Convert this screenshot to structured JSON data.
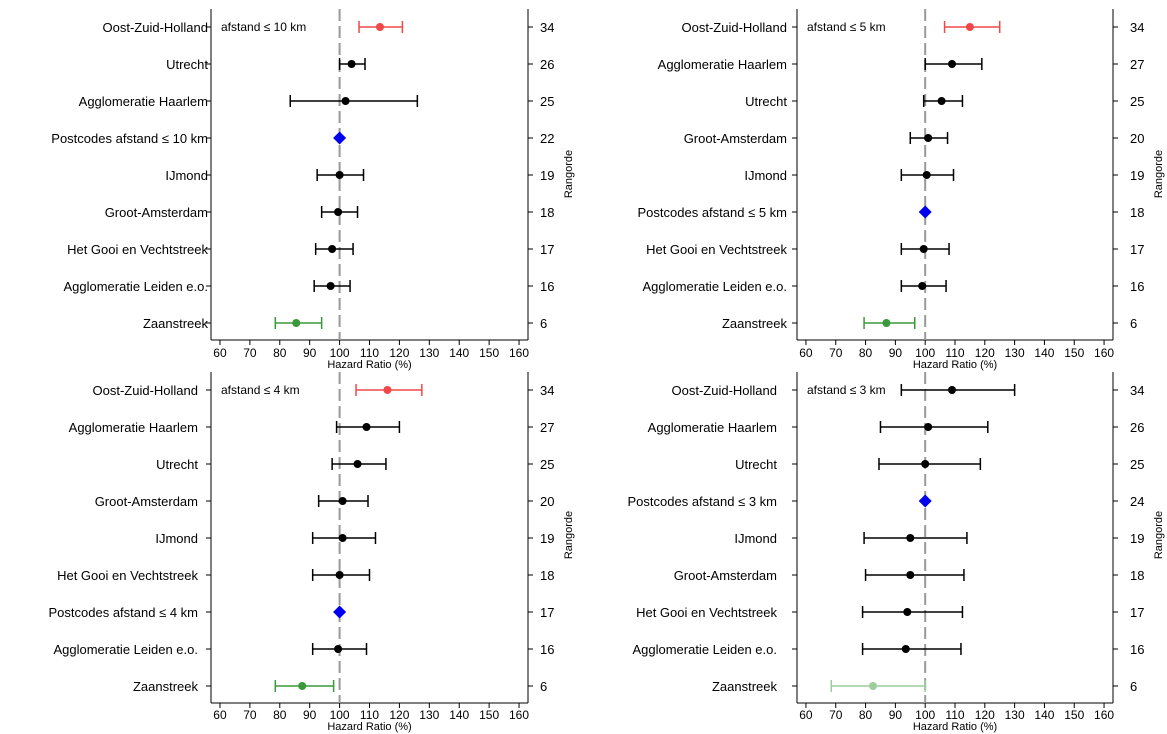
{
  "chart_data": [
    {
      "type": "forest",
      "annotation": "afstand ≤ 10 km",
      "xlabel": "Hazard Ratio (%)",
      "right_label": "Rangorde",
      "xlim": [
        57,
        163
      ],
      "xticks": [
        60,
        70,
        80,
        90,
        100,
        110,
        120,
        130,
        140,
        150,
        160
      ],
      "reference": 100,
      "rows": [
        {
          "label": "Oost-Zuid-Holland",
          "rank": "34",
          "est": 113.5,
          "lo": 106.5,
          "hi": 121,
          "color": "#f04848"
        },
        {
          "label": "Utrecht",
          "rank": "26",
          "est": 104,
          "lo": 100,
          "hi": 108.5,
          "color": "#000000"
        },
        {
          "label": "Agglomeratie Haarlem",
          "rank": "25",
          "est": 102,
          "lo": 83.5,
          "hi": 126,
          "color": "#000000"
        },
        {
          "label": "Postcodes afstand ≤ 10 km",
          "rank": "22",
          "est": 100,
          "lo": null,
          "hi": null,
          "color": "#0000ee",
          "marker": "diamond"
        },
        {
          "label": "IJmond",
          "rank": "19",
          "est": 100,
          "lo": 92.5,
          "hi": 108,
          "color": "#000000"
        },
        {
          "label": "Groot-Amsterdam",
          "rank": "18",
          "est": 99.5,
          "lo": 94,
          "hi": 106,
          "color": "#000000"
        },
        {
          "label": "Het Gooi en Vechtstreek",
          "rank": "17",
          "est": 97.5,
          "lo": 92,
          "hi": 104.5,
          "color": "#000000"
        },
        {
          "label": "Agglomeratie Leiden e.o.",
          "rank": "16",
          "est": 97,
          "lo": 91.5,
          "hi": 103.5,
          "color": "#000000"
        },
        {
          "label": "Zaanstreek",
          "rank": "6",
          "est": 85.5,
          "lo": 78.5,
          "hi": 94,
          "color": "#3a9a3a"
        }
      ]
    },
    {
      "type": "forest",
      "annotation": "afstand ≤ 5 km",
      "xlabel": "Hazard Ratio (%)",
      "right_label": "Rangorde",
      "xlim": [
        57,
        163
      ],
      "xticks": [
        60,
        70,
        80,
        90,
        100,
        110,
        120,
        130,
        140,
        150,
        160
      ],
      "reference": 100,
      "rows": [
        {
          "label": "Oost-Zuid-Holland",
          "rank": "34",
          "est": 115,
          "lo": 106.5,
          "hi": 125,
          "color": "#f04848"
        },
        {
          "label": "Agglomeratie Haarlem",
          "rank": "27",
          "est": 109,
          "lo": 100,
          "hi": 119,
          "color": "#000000"
        },
        {
          "label": "Utrecht",
          "rank": "25",
          "est": 105.5,
          "lo": 99.5,
          "hi": 112.5,
          "color": "#000000"
        },
        {
          "label": "Groot-Amsterdam",
          "rank": "20",
          "est": 101,
          "lo": 95,
          "hi": 107.5,
          "color": "#000000"
        },
        {
          "label": "IJmond",
          "rank": "19",
          "est": 100.5,
          "lo": 92,
          "hi": 109.5,
          "color": "#000000"
        },
        {
          "label": "Postcodes afstand ≤ 5 km",
          "rank": "18",
          "est": 100,
          "lo": null,
          "hi": null,
          "color": "#0000ee",
          "marker": "diamond"
        },
        {
          "label": "Het Gooi en Vechtstreek",
          "rank": "17",
          "est": 99.5,
          "lo": 92,
          "hi": 108,
          "color": "#000000"
        },
        {
          "label": "Agglomeratie Leiden e.o.",
          "rank": "16",
          "est": 99,
          "lo": 92,
          "hi": 107,
          "color": "#000000"
        },
        {
          "label": "Zaanstreek",
          "rank": "6",
          "est": 87,
          "lo": 79.5,
          "hi": 96.5,
          "color": "#3a9a3a"
        }
      ]
    },
    {
      "type": "forest",
      "annotation": "afstand ≤ 4 km",
      "xlabel": "Hazard Ratio (%)",
      "right_label": "Rangorde",
      "xlim": [
        57,
        163
      ],
      "xticks": [
        60,
        70,
        80,
        90,
        100,
        110,
        120,
        130,
        140,
        150,
        160
      ],
      "reference": 100,
      "rows": [
        {
          "label": "Oost-Zuid-Holland",
          "rank": "34",
          "est": 116,
          "lo": 105.5,
          "hi": 127.5,
          "color": "#f04848"
        },
        {
          "label": "Agglomeratie Haarlem",
          "rank": "27",
          "est": 109,
          "lo": 99,
          "hi": 120,
          "color": "#000000"
        },
        {
          "label": "Utrecht",
          "rank": "25",
          "est": 106,
          "lo": 97.5,
          "hi": 115.5,
          "color": "#000000"
        },
        {
          "label": "Groot-Amsterdam",
          "rank": "20",
          "est": 101,
          "lo": 93,
          "hi": 109.5,
          "color": "#000000"
        },
        {
          "label": "IJmond",
          "rank": "19",
          "est": 101,
          "lo": 91,
          "hi": 112,
          "color": "#000000"
        },
        {
          "label": "Het Gooi en Vechtstreek",
          "rank": "18",
          "est": 100,
          "lo": 91,
          "hi": 110,
          "color": "#000000"
        },
        {
          "label": "Postcodes afstand ≤ 4 km",
          "rank": "17",
          "est": 100,
          "lo": null,
          "hi": null,
          "color": "#0000ee",
          "marker": "diamond"
        },
        {
          "label": "Agglomeratie Leiden e.o.",
          "rank": "16",
          "est": 99.5,
          "lo": 91,
          "hi": 109,
          "color": "#000000"
        },
        {
          "label": "Zaanstreek",
          "rank": "6",
          "est": 87.5,
          "lo": 78.5,
          "hi": 98,
          "color": "#3a9a3a"
        }
      ]
    },
    {
      "type": "forest",
      "annotation": "afstand ≤ 3 km",
      "xlabel": "Hazard Ratio (%)",
      "right_label": "Rangorde",
      "xlim": [
        57,
        163
      ],
      "xticks": [
        60,
        70,
        80,
        90,
        100,
        110,
        120,
        130,
        140,
        150,
        160
      ],
      "reference": 100,
      "rows": [
        {
          "label": "Oost-Zuid-Holland",
          "rank": "34",
          "est": 109,
          "lo": 92,
          "hi": 130,
          "color": "#000000"
        },
        {
          "label": "Agglomeratie Haarlem",
          "rank": "26",
          "est": 101,
          "lo": 85,
          "hi": 121,
          "color": "#000000"
        },
        {
          "label": "Utrecht",
          "rank": "25",
          "est": 100,
          "lo": 84.5,
          "hi": 118.5,
          "color": "#000000"
        },
        {
          "label": "Postcodes afstand ≤ 3 km",
          "rank": "24",
          "est": 100,
          "lo": null,
          "hi": null,
          "color": "#0000ee",
          "marker": "diamond"
        },
        {
          "label": "IJmond",
          "rank": "19",
          "est": 95,
          "lo": 79.5,
          "hi": 114,
          "color": "#000000"
        },
        {
          "label": "Groot-Amsterdam",
          "rank": "18",
          "est": 95,
          "lo": 80,
          "hi": 113,
          "color": "#000000"
        },
        {
          "label": "Het Gooi en Vechtstreek",
          "rank": "17",
          "est": 94,
          "lo": 79,
          "hi": 112.5,
          "color": "#000000"
        },
        {
          "label": "Agglomeratie Leiden e.o.",
          "rank": "16",
          "est": 93.5,
          "lo": 79,
          "hi": 112,
          "color": "#000000"
        },
        {
          "label": "Zaanstreek",
          "rank": "6",
          "est": 82.5,
          "lo": 68.5,
          "hi": 100,
          "color": "#9ccc9c"
        }
      ]
    }
  ]
}
